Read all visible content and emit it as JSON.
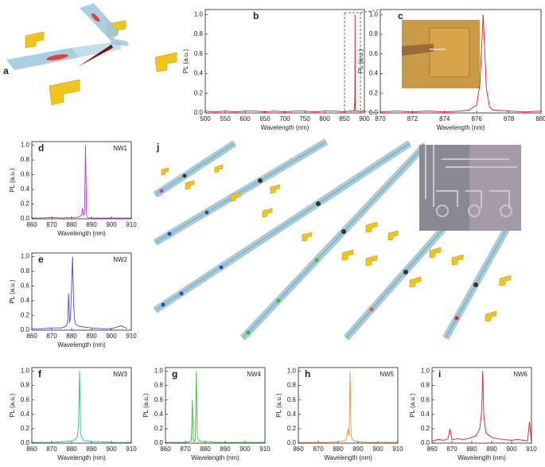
{
  "figures": [
    {
      "panel": "a"
    },
    {
      "panel": "j"
    }
  ],
  "chart_data": [
    {
      "type": "line",
      "panel": "b",
      "ylabel": "PL (a.u.)",
      "xlabel": "Wavelength (nm)",
      "color": "#d42020",
      "x": [
        500,
        525,
        550,
        575,
        600,
        625,
        650,
        675,
        700,
        725,
        750,
        775,
        800,
        825,
        850,
        860,
        870,
        875,
        876,
        876.4,
        877,
        878,
        880,
        885,
        890,
        895,
        900
      ],
      "values": [
        0.02,
        0.01,
        0.02,
        0.01,
        0.02,
        0.02,
        0.01,
        0.02,
        0.01,
        0.02,
        0.02,
        0.01,
        0.02,
        0.02,
        0.01,
        0.02,
        0.02,
        0.03,
        0.15,
        1.0,
        0.08,
        0.03,
        0.02,
        0.02,
        0.01,
        0.02,
        0.02
      ],
      "xlim": [
        500,
        900
      ],
      "ylim": [
        0,
        1.05
      ],
      "xticks": [
        500,
        550,
        600,
        650,
        700,
        750,
        800,
        850,
        900
      ],
      "yticks": [
        {
          "value": 0,
          "label": "0.0"
        },
        0.2,
        0.4,
        0.6,
        0.8,
        {
          "value": 1,
          "label": "1.0"
        }
      ]
    },
    {
      "type": "line",
      "panel": "c",
      "ylabel": "PL (a.u.)",
      "xlabel": "Wavelength (nm)",
      "color": "#d42020",
      "x": [
        870,
        871,
        872,
        873,
        874,
        875,
        875.5,
        876,
        876.2,
        876.4,
        876.6,
        876.8,
        877,
        878,
        879,
        880
      ],
      "values": [
        0.01,
        0.02,
        0.01,
        0.02,
        0.01,
        0.02,
        0.03,
        0.08,
        0.3,
        1.0,
        0.25,
        0.06,
        0.03,
        0.02,
        0.01,
        0.02
      ],
      "xlim": [
        870,
        880
      ],
      "ylim": [
        0,
        1.05
      ],
      "xticks": [
        870,
        872,
        874,
        876,
        878,
        880
      ],
      "yticks": [
        {
          "value": 0,
          "label": "0.0"
        },
        0.2,
        0.4,
        0.6,
        0.8,
        {
          "value": 1,
          "label": "1.0"
        }
      ]
    },
    {
      "type": "line",
      "panel": "d",
      "label": "NW1",
      "ylabel": "PL (a.u.)",
      "xlabel": "Wavelength (nm)",
      "color": "#b43cc8",
      "x": [
        860,
        865,
        870,
        875,
        880,
        883,
        884,
        885,
        885.5,
        886,
        886.5,
        887,
        887.5,
        888,
        890,
        895,
        900,
        905,
        910
      ],
      "values": [
        0.01,
        0.01,
        0.02,
        0.01,
        0.02,
        0.02,
        0.03,
        0.05,
        0.15,
        0.04,
        0.1,
        1.0,
        0.05,
        0.02,
        0.01,
        0.01,
        0.01,
        0.01,
        0.01
      ],
      "xlim": [
        860,
        910
      ],
      "ylim": [
        0,
        1.05
      ],
      "xticks": [
        860,
        870,
        880,
        890,
        900,
        910
      ],
      "yticks": [
        {
          "value": 0,
          "label": "0.0"
        },
        0.2,
        0.4,
        0.6,
        0.8,
        {
          "value": 1,
          "label": "1.0"
        }
      ]
    },
    {
      "type": "line",
      "panel": "e",
      "label": "NW2",
      "ylabel": "PL (a.u.)",
      "xlabel": "Wavelength (nm)",
      "color": "#3b4fd6",
      "x": [
        860,
        865,
        870,
        875,
        877,
        878,
        878.5,
        879,
        879.5,
        880,
        880.5,
        881,
        881.5,
        882,
        884,
        887,
        890,
        895,
        900,
        905,
        908
      ],
      "values": [
        0.02,
        0.02,
        0.03,
        0.03,
        0.05,
        0.1,
        0.5,
        0.1,
        0.2,
        0.6,
        1.0,
        0.35,
        0.15,
        0.08,
        0.05,
        0.04,
        0.03,
        0.02,
        0.02,
        0.06,
        0.02
      ],
      "xlim": [
        860,
        910
      ],
      "ylim": [
        0,
        1.05
      ],
      "xticks": [
        860,
        870,
        880,
        890,
        900,
        910
      ],
      "yticks": [
        {
          "value": 0,
          "label": "0.0"
        },
        0.2,
        0.4,
        0.6,
        0.8,
        {
          "value": 1,
          "label": "1.0"
        }
      ]
    },
    {
      "type": "line",
      "panel": "f",
      "label": "NW3",
      "ylabel": "PL (a.u.)",
      "xlabel": "Wavelength (nm)",
      "color": "#2ab3b0",
      "x": [
        860,
        865,
        870,
        875,
        880,
        882,
        883,
        883.5,
        884,
        884.5,
        885,
        886,
        888,
        890,
        895,
        900,
        905,
        910
      ],
      "values": [
        0.01,
        0.01,
        0.01,
        0.02,
        0.03,
        0.05,
        0.1,
        0.3,
        1.0,
        0.15,
        0.08,
        0.04,
        0.03,
        0.02,
        0.02,
        0.01,
        0.01,
        0.01
      ],
      "xlim": [
        860,
        910
      ],
      "ylim": [
        0,
        1.05
      ],
      "xticks": [
        860,
        870,
        880,
        890,
        900,
        910
      ],
      "yticks": [
        {
          "value": 0,
          "label": "0.0"
        },
        0.2,
        0.4,
        0.6,
        0.8,
        {
          "value": 1,
          "label": "1.0"
        }
      ]
    },
    {
      "type": "line",
      "panel": "g",
      "label": "NW4",
      "ylabel": "PL (a.u.)",
      "xlabel": "Wavelength (nm)",
      "color": "#3cbf3c",
      "x": [
        860,
        865,
        870,
        872,
        873,
        873.5,
        874,
        874.5,
        875,
        875.5,
        876,
        876.5,
        877,
        879,
        882,
        885,
        890,
        895,
        900,
        905,
        910
      ],
      "values": [
        0.01,
        0.01,
        0.01,
        0.02,
        0.04,
        0.6,
        0.05,
        0.02,
        0.05,
        1.0,
        0.1,
        0.05,
        0.03,
        0.02,
        0.02,
        0.01,
        0.01,
        0.01,
        0.01,
        0.01,
        0.01
      ],
      "xlim": [
        860,
        910
      ],
      "ylim": [
        0,
        1.05
      ],
      "xticks": [
        860,
        870,
        880,
        890,
        900,
        910
      ],
      "yticks": [
        {
          "value": 0,
          "label": "0.0"
        },
        0.2,
        0.4,
        0.6,
        0.8,
        {
          "value": 1,
          "label": "1.0"
        }
      ]
    },
    {
      "type": "line",
      "panel": "h",
      "label": "NW5",
      "ylabel": "PL (a.u.)",
      "xlabel": "Wavelength (nm)",
      "color": "#e8923c",
      "x": [
        860,
        865,
        870,
        875,
        880,
        883,
        884,
        885,
        885.5,
        886,
        886.5,
        887,
        888,
        890,
        895,
        900,
        905,
        910
      ],
      "values": [
        0.01,
        0.01,
        0.01,
        0.01,
        0.02,
        0.03,
        0.05,
        0.2,
        0.1,
        1.0,
        0.12,
        0.05,
        0.03,
        0.02,
        0.01,
        0.01,
        0.01,
        0.01
      ],
      "xlim": [
        860,
        910
      ],
      "ylim": [
        0,
        1.05
      ],
      "xticks": [
        860,
        870,
        880,
        890,
        900,
        910
      ],
      "yticks": [
        {
          "value": 0,
          "label": "0.0"
        },
        0.2,
        0.4,
        0.6,
        0.8,
        {
          "value": 1,
          "label": "1.0"
        }
      ]
    },
    {
      "type": "line",
      "panel": "i",
      "label": "NW6",
      "ylabel": "PL (a.u.)",
      "xlabel": "Wavelength (nm)",
      "color": "#d62020",
      "x": [
        860,
        863,
        866,
        868,
        869,
        870,
        873,
        876,
        879,
        882,
        884,
        885,
        885.5,
        886,
        887,
        888,
        890,
        893,
        896,
        900,
        903,
        906,
        908,
        909,
        910
      ],
      "values": [
        0.03,
        0.05,
        0.04,
        0.06,
        0.2,
        0.05,
        0.06,
        0.05,
        0.07,
        0.1,
        0.2,
        0.45,
        1.0,
        0.4,
        0.15,
        0.12,
        0.08,
        0.06,
        0.05,
        0.04,
        0.05,
        0.04,
        0.03,
        0.3,
        0.02
      ],
      "xlim": [
        860,
        910
      ],
      "ylim": [
        0,
        1.05
      ],
      "xticks": [
        860,
        870,
        880,
        890,
        900,
        910
      ],
      "yticks": [
        {
          "value": 0,
          "label": "0.0"
        },
        0.2,
        0.4,
        0.6,
        0.8,
        {
          "value": 1,
          "label": "1.0"
        }
      ]
    }
  ]
}
